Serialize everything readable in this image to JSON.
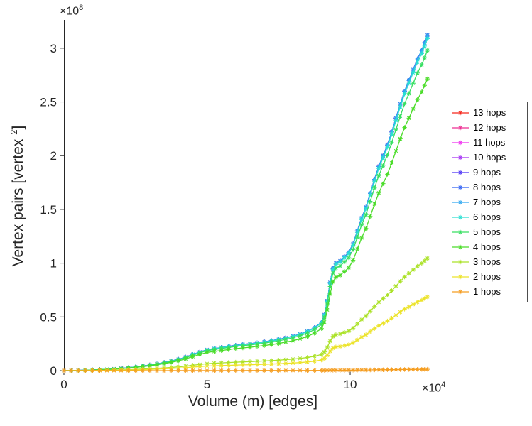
{
  "figure": {
    "background": "#ffffff",
    "axis_color": "#262626"
  },
  "axes": {
    "x_label": "Volume (m) [edges]",
    "x_exponent": {
      "base": "×10",
      "exp": "4"
    },
    "y_label": {
      "main": "Vertex pairs [vertex",
      "sup": "2",
      "close": "]"
    },
    "y_exponent": {
      "base": "×10",
      "exp": "8"
    },
    "x_ticks": [
      0,
      5,
      10
    ],
    "x_tick_labels": [
      "0",
      "5",
      "10"
    ],
    "y_ticks": [
      0,
      0.5,
      1,
      1.5,
      2,
      2.5,
      3
    ],
    "y_tick_labels": [
      "0",
      "0.5",
      "1",
      "1.5",
      "2",
      "2.5",
      "3"
    ]
  },
  "chart_data": {
    "type": "line",
    "title": "",
    "xlabel": "Volume (m) [edges]",
    "ylabel": "Vertex pairs [vertex^2]",
    "marker": "asterisk",
    "legend_position": "right-outside",
    "grid": false,
    "x_unit_multiplier": 10000,
    "y_unit_multiplier": 100000000,
    "xlim": [
      0,
      13.2
    ],
    "ylim": [
      0,
      3.25
    ],
    "x": [
      0,
      0.25,
      0.5,
      0.75,
      1,
      1.25,
      1.5,
      1.75,
      2,
      2.25,
      2.5,
      2.75,
      3,
      3.25,
      3.5,
      3.75,
      4,
      4.25,
      4.5,
      4.75,
      5,
      5.25,
      5.5,
      5.75,
      6,
      6.25,
      6.5,
      6.75,
      7,
      7.25,
      7.5,
      7.75,
      8,
      8.25,
      8.5,
      8.75,
      9,
      9.1,
      9.2,
      9.3,
      9.4,
      9.5,
      9.65,
      9.8,
      9.95,
      10.1,
      10.25,
      10.4,
      10.55,
      10.7,
      10.85,
      11,
      11.15,
      11.3,
      11.45,
      11.6,
      11.75,
      11.9,
      12.05,
      12.2,
      12.35,
      12.5,
      12.6,
      12.7
    ],
    "base_values": [
      0,
      0.001,
      0.002,
      0.004,
      0.006,
      0.009,
      0.012,
      0.016,
      0.021,
      0.027,
      0.034,
      0.043,
      0.052,
      0.063,
      0.075,
      0.089,
      0.105,
      0.125,
      0.15,
      0.172,
      0.195,
      0.205,
      0.215,
      0.225,
      0.235,
      0.243,
      0.25,
      0.259,
      0.268,
      0.279,
      0.29,
      0.305,
      0.32,
      0.34,
      0.365,
      0.4,
      0.45,
      0.52,
      0.65,
      0.82,
      0.95,
      1,
      1.02,
      1.06,
      1.1,
      1.18,
      1.3,
      1.42,
      1.52,
      1.65,
      1.78,
      1.9,
      2,
      2.1,
      2.22,
      2.35,
      2.48,
      2.6,
      2.7,
      2.8,
      2.9,
      2.98,
      3.05,
      3.12
    ],
    "values_note": "series values = base_values * scale_of_base; x is in units of 1e4 edges, y in units of 1e8 vertex pairs; hops >= 7 saturate on the same curve (max ~3.12e8 at x ~12.7e4)",
    "series": [
      {
        "name": "13 hops",
        "color": "#f5261b",
        "scale_of_base": 1.0
      },
      {
        "name": "12 hops",
        "color": "#ee2e92",
        "scale_of_base": 1.0
      },
      {
        "name": "11 hops",
        "color": "#ef2cef",
        "scale_of_base": 1.0
      },
      {
        "name": "10 hops",
        "color": "#a32df4",
        "scale_of_base": 1.0
      },
      {
        "name": "9 hops",
        "color": "#4a30f5",
        "scale_of_base": 1.0
      },
      {
        "name": "8 hops",
        "color": "#2e5ff3",
        "scale_of_base": 1.0
      },
      {
        "name": "7 hops",
        "color": "#30a8f0",
        "scale_of_base": 1.0
      },
      {
        "name": "6 hops",
        "color": "#2adfd2",
        "scale_of_base": 0.99
      },
      {
        "name": "5 hops",
        "color": "#38df62",
        "scale_of_base": 0.955
      },
      {
        "name": "4 hops",
        "color": "#4bdc29",
        "scale_of_base": 0.87
      },
      {
        "name": "3 hops",
        "color": "#abe228",
        "scale_of_base": 0.335
      },
      {
        "name": "2 hops",
        "color": "#ece32a",
        "scale_of_base": 0.22
      },
      {
        "name": "1 hops",
        "color": "#f59d20",
        "scale_of_base": 0.004
      }
    ]
  }
}
